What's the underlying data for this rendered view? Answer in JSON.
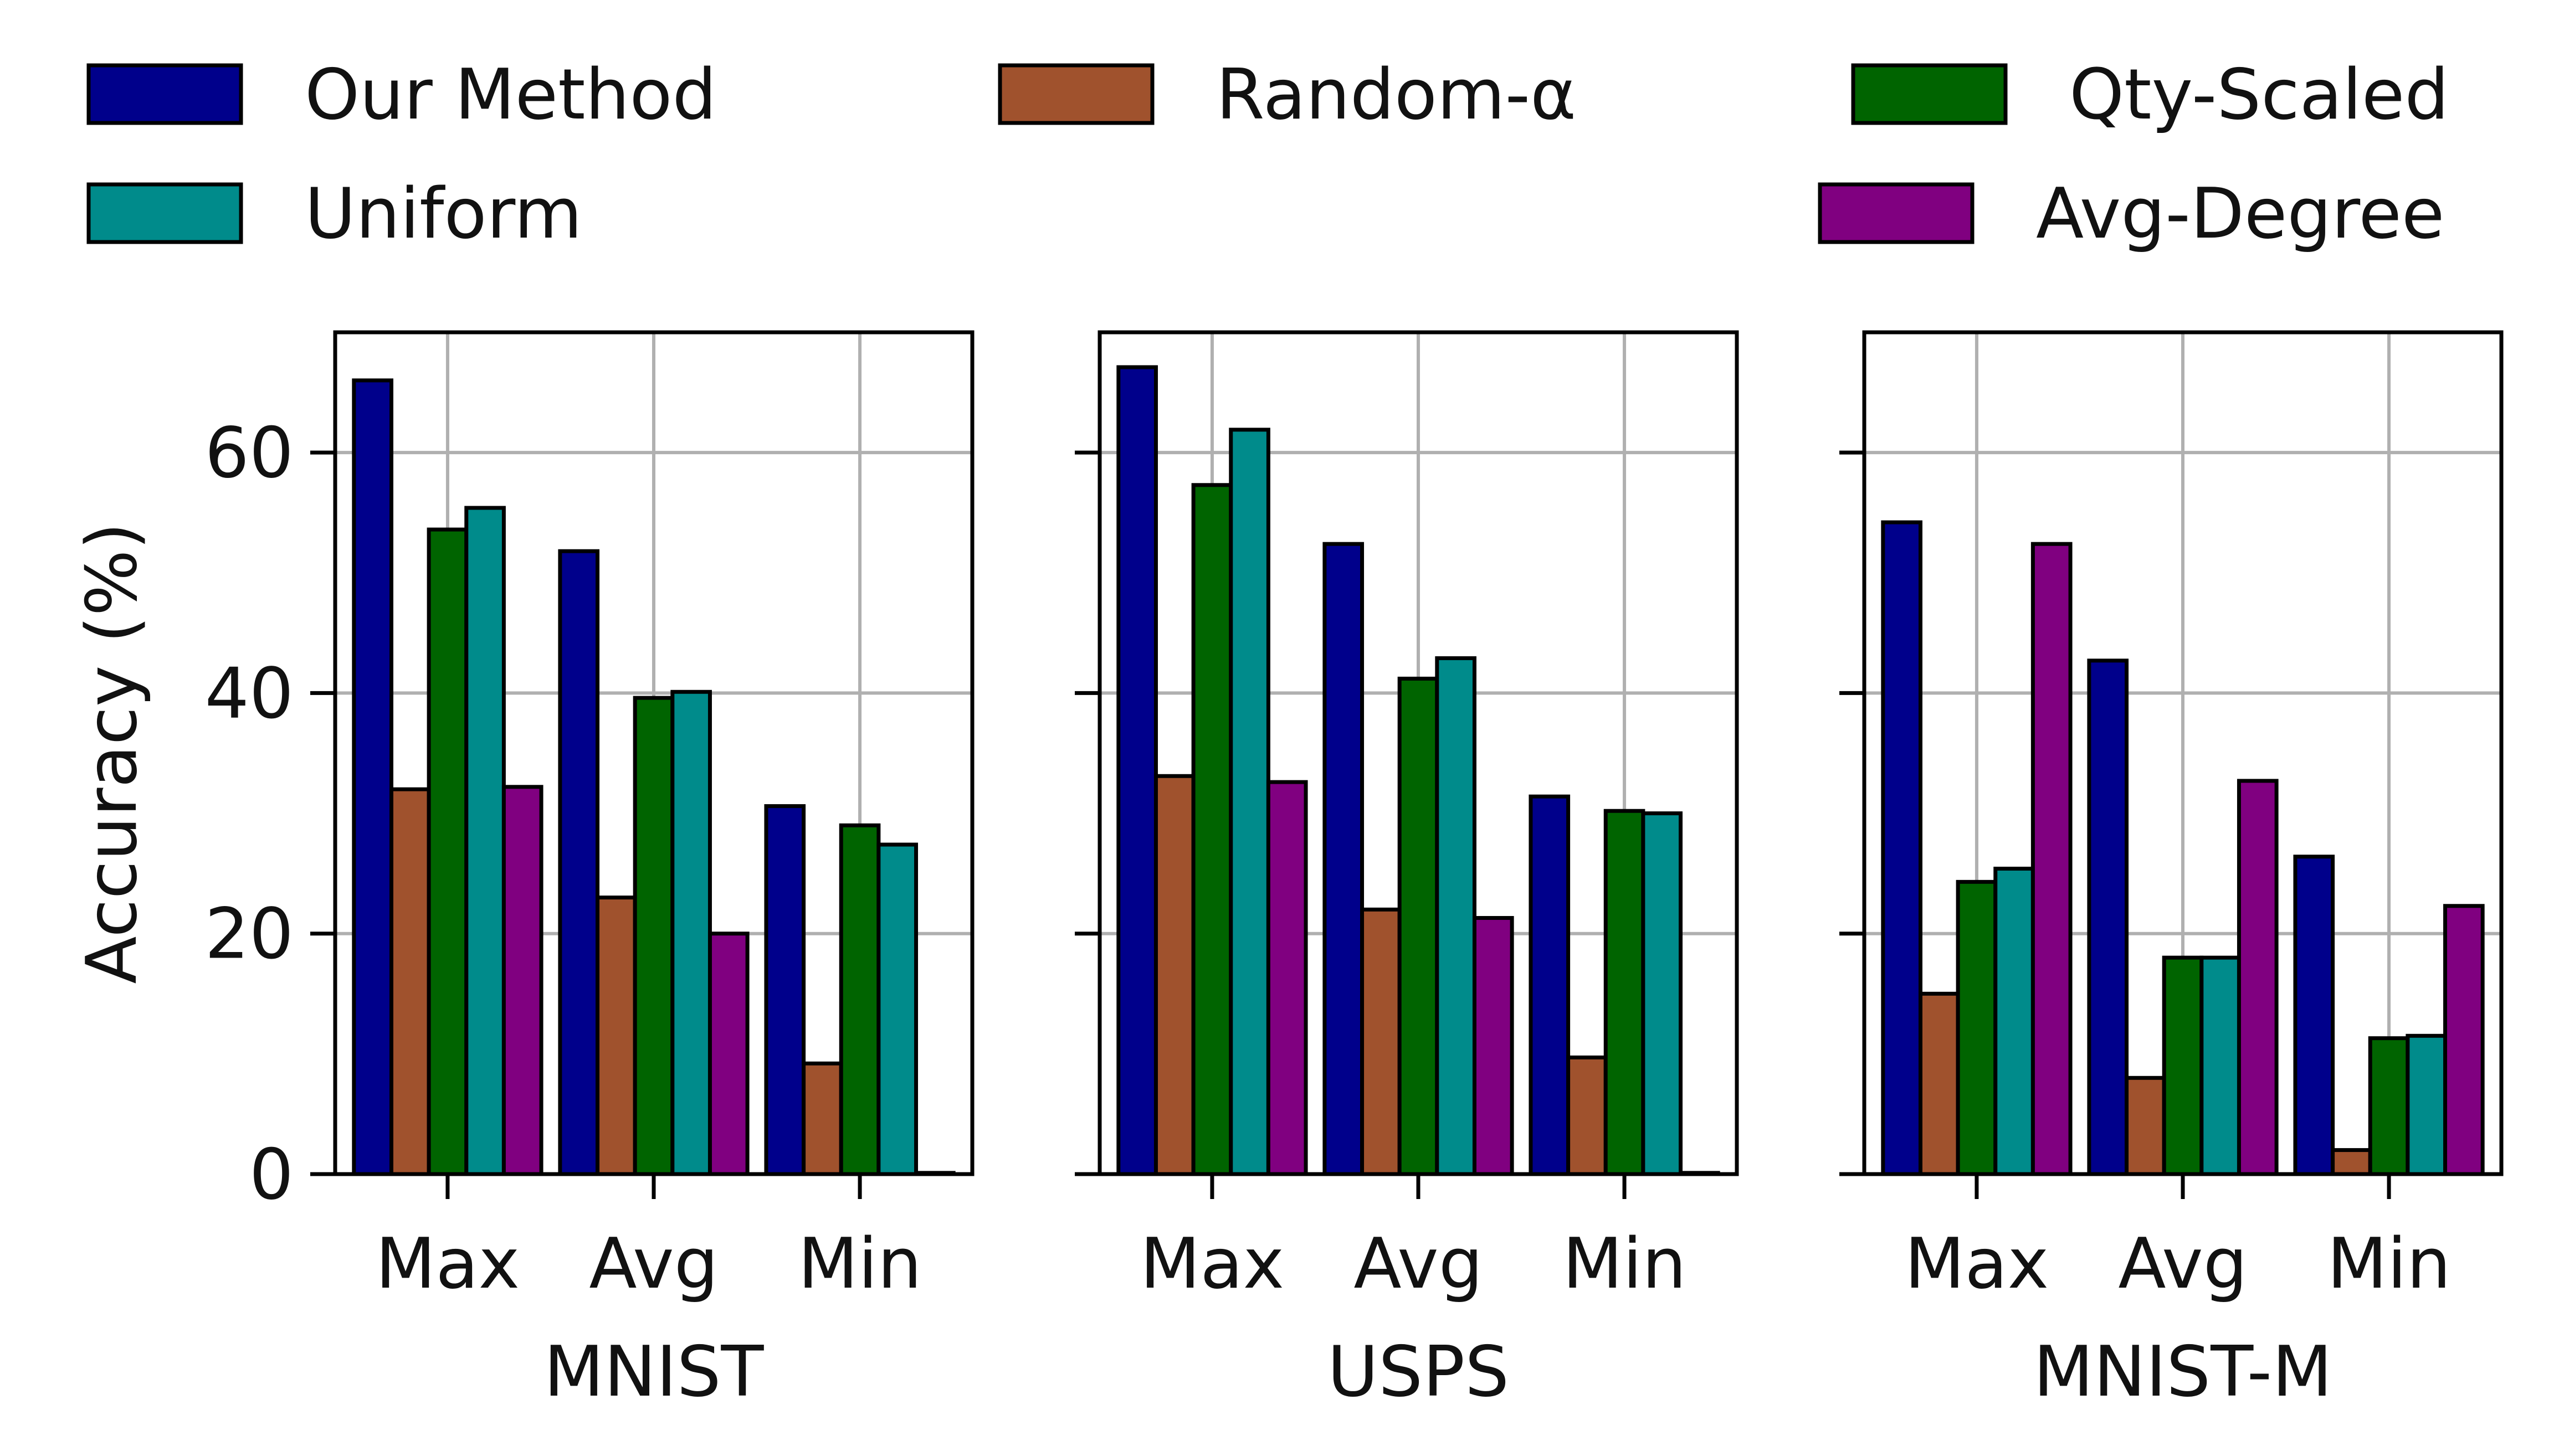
{
  "chart_data": {
    "type": "bar",
    "ylabel": "Accuracy (%)",
    "ylim": [
      0,
      70
    ],
    "yticks": [
      0,
      20,
      40,
      60
    ],
    "grid": true,
    "legend_position": "top",
    "categories": [
      "Max",
      "Avg",
      "Min"
    ],
    "legend": [
      {
        "name": "Our Method",
        "color": "#00008b"
      },
      {
        "name": "Random-α",
        "color": "#a0522d"
      },
      {
        "name": "Qty-Scaled",
        "color": "#006400"
      },
      {
        "name": "Uniform",
        "color": "#008b8b"
      },
      {
        "name": "Avg-Degree",
        "color": "#800080"
      }
    ],
    "panels": [
      {
        "xlabel": "MNIST",
        "series": [
          {
            "name": "Our Method",
            "values": [
              66.0,
              51.8,
              30.6
            ]
          },
          {
            "name": "Random-α",
            "values": [
              32.0,
              23.0,
              9.2
            ]
          },
          {
            "name": "Qty-Scaled",
            "values": [
              53.6,
              39.6,
              29.0
            ]
          },
          {
            "name": "Uniform",
            "values": [
              55.4,
              40.1,
              27.4
            ]
          },
          {
            "name": "Avg-Degree",
            "values": [
              32.2,
              20.0,
              0.1
            ]
          }
        ]
      },
      {
        "xlabel": "USPS",
        "series": [
          {
            "name": "Our Method",
            "values": [
              67.1,
              52.4,
              31.4
            ]
          },
          {
            "name": "Random-α",
            "values": [
              33.1,
              22.0,
              9.7
            ]
          },
          {
            "name": "Qty-Scaled",
            "values": [
              57.3,
              41.2,
              30.2
            ]
          },
          {
            "name": "Uniform",
            "values": [
              61.9,
              42.9,
              30.0
            ]
          },
          {
            "name": "Avg-Degree",
            "values": [
              32.6,
              21.3,
              0.1
            ]
          }
        ]
      },
      {
        "xlabel": "MNIST-M",
        "series": [
          {
            "name": "Our Method",
            "values": [
              54.2,
              42.7,
              26.4
            ]
          },
          {
            "name": "Random-α",
            "values": [
              15.0,
              8.0,
              2.0
            ]
          },
          {
            "name": "Qty-Scaled",
            "values": [
              24.3,
              18.0,
              11.3
            ]
          },
          {
            "name": "Uniform",
            "values": [
              25.4,
              18.0,
              11.5
            ]
          },
          {
            "name": "Avg-Degree",
            "values": [
              52.4,
              32.7,
              22.3
            ]
          }
        ]
      }
    ]
  }
}
